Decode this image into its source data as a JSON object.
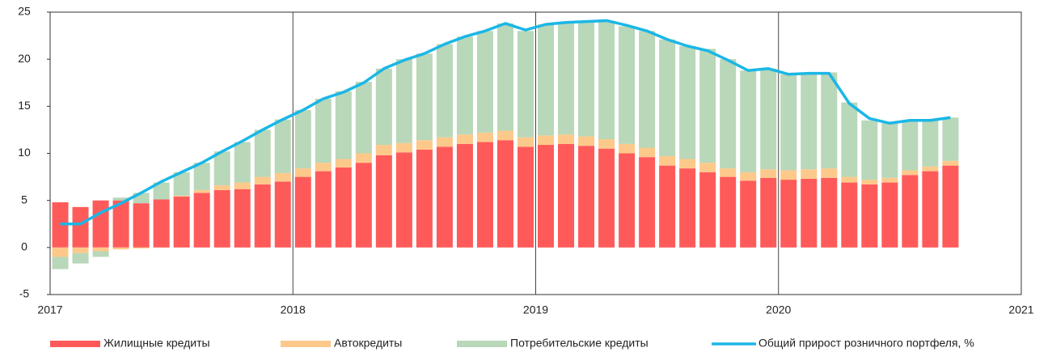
{
  "chart_data": {
    "type": "bar",
    "categories": [
      null,
      null,
      null,
      null,
      null,
      null,
      null,
      null,
      null,
      null,
      null,
      null,
      null,
      null,
      null,
      null,
      null,
      null,
      null,
      null,
      null,
      null,
      null,
      null,
      null,
      null,
      null,
      null,
      null,
      null,
      null,
      null,
      null,
      null,
      null,
      null,
      null,
      null,
      null,
      null,
      null,
      null,
      null,
      null,
      null
    ],
    "series": [
      {
        "name": "Жилищные кредиты",
        "color": "#ff5a5a",
        "values": [
          4.8,
          4.3,
          5.0,
          5.0,
          4.7,
          5.1,
          5.4,
          5.8,
          6.1,
          6.2,
          6.7,
          7.0,
          7.5,
          8.1,
          8.5,
          9.0,
          9.8,
          10.1,
          10.4,
          10.7,
          11.0,
          11.2,
          11.4,
          10.7,
          10.9,
          11.0,
          10.8,
          10.5,
          10.0,
          9.6,
          8.7,
          8.4,
          8.0,
          7.5,
          7.1,
          7.4,
          7.2,
          7.3,
          7.4,
          6.9,
          6.7,
          6.9,
          7.7,
          8.1,
          8.7
        ]
      },
      {
        "name": "Автокредиты",
        "color": "#fdc98a",
        "values": [
          -1.0,
          -0.6,
          -0.4,
          -0.2,
          -0.1,
          0,
          0.1,
          0.3,
          0.5,
          0.7,
          0.8,
          0.9,
          0.9,
          0.9,
          0.9,
          1.0,
          1.1,
          1.0,
          1.0,
          1.0,
          1.0,
          1.0,
          1.0,
          1.0,
          1.0,
          1.0,
          1.0,
          1.0,
          1.0,
          1.0,
          1.0,
          1.0,
          1.0,
          0.9,
          0.9,
          0.9,
          1.0,
          1.0,
          1.0,
          0.6,
          0.5,
          0.5,
          0.5,
          0.5,
          0.5
        ]
      },
      {
        "name": "Потребительские кредиты",
        "color": "#b9d7b9",
        "values": [
          -1.3,
          -1.1,
          -0.6,
          0.3,
          1.1,
          1.8,
          2.5,
          2.9,
          3.6,
          4.3,
          5.0,
          5.7,
          6.2,
          6.8,
          7.2,
          7.6,
          8.1,
          8.9,
          9.2,
          9.9,
          10.4,
          10.8,
          11.4,
          11.3,
          11.8,
          11.9,
          12.2,
          12.5,
          12.5,
          12.4,
          12.4,
          12.0,
          12.1,
          11.6,
          10.8,
          10.7,
          10.2,
          10.2,
          10.2,
          7.9,
          6.3,
          5.8,
          5.3,
          4.9,
          4.6
        ]
      },
      {
        "name": "Общий прирост розничного портфеля, %",
        "color": "#1ab7e6",
        "type": "line",
        "values": [
          2.5,
          2.5,
          3.7,
          4.7,
          5.8,
          7.0,
          8.0,
          9.0,
          10.2,
          11.3,
          12.5,
          13.6,
          14.6,
          15.8,
          16.5,
          17.5,
          19.0,
          19.9,
          20.6,
          21.6,
          22.4,
          23.0,
          23.8,
          23.1,
          23.7,
          23.9,
          24.0,
          24.1,
          23.6,
          23.0,
          22.1,
          21.4,
          20.9,
          19.9,
          18.8,
          19.0,
          18.4,
          18.5,
          18.5,
          15.3,
          13.7,
          13.2,
          13.5,
          13.5,
          13.8
        ]
      }
    ],
    "stacked": true,
    "ylim": [
      -5,
      25
    ],
    "yticks": [
      -5,
      0,
      5,
      10,
      15,
      20,
      25
    ],
    "xlim": [
      2017,
      2021
    ],
    "xticks": [
      2017,
      2018,
      2019,
      2020,
      2021
    ],
    "grid": true,
    "legend": "bottom"
  }
}
